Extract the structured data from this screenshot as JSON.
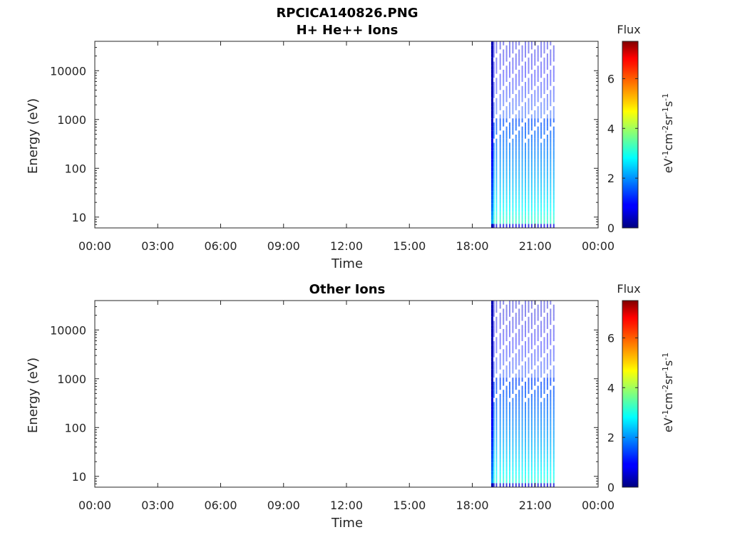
{
  "figure_title": "RPCICA140826.PNG",
  "chart_data": [
    {
      "type": "heatmap",
      "title": "H+ He++ Ions",
      "xlabel": "Time",
      "ylabel": "Energy (eV)",
      "yscale": "log",
      "ylim": [
        6,
        40000
      ],
      "xlim": [
        0,
        24
      ],
      "x_ticks": [
        0,
        3,
        6,
        9,
        12,
        15,
        18,
        21,
        24
      ],
      "x_tick_labels": [
        "00:00",
        "03:00",
        "06:00",
        "09:00",
        "12:00",
        "15:00",
        "18:00",
        "21:00",
        "00:00"
      ],
      "y_ticks": [
        10,
        100,
        1000,
        10000
      ],
      "y_tick_labels": [
        "10",
        "100",
        "1000",
        "10000"
      ],
      "colorbar": {
        "title": "Flux",
        "label": "eV-1cm-2sr-1s-1",
        "range": [
          0,
          7.5
        ],
        "ticks": [
          0,
          2,
          4,
          6
        ],
        "tick_labels": [
          "0",
          "2",
          "4",
          "6"
        ],
        "colormap": "jet"
      },
      "data_time_range": [
        18.9,
        21.85
      ],
      "strip_times": [
        18.9,
        19.0,
        19.12,
        19.3,
        19.45,
        19.6,
        19.75,
        19.9,
        20.05,
        20.2,
        20.35,
        20.5,
        20.65,
        20.8,
        20.95,
        21.1,
        21.25,
        21.4,
        21.55,
        21.7,
        21.85
      ],
      "flux_profile": [
        {
          "energy": 7,
          "flux": 3.3
        },
        {
          "energy": 15,
          "flux": 2.8
        },
        {
          "energy": 40,
          "flux": 2.4
        },
        {
          "energy": 100,
          "flux": 2.1
        },
        {
          "energy": 300,
          "flux": 1.8
        },
        {
          "energy": 1000,
          "flux": 1.5
        },
        {
          "energy": 3000,
          "flux": 1.2
        },
        {
          "energy": 10000,
          "flux": 0.9
        },
        {
          "energy": 40000,
          "flux": 0.7
        }
      ]
    },
    {
      "type": "heatmap",
      "title": "Other Ions",
      "xlabel": "Time",
      "ylabel": "Energy (eV)",
      "yscale": "log",
      "ylim": [
        6,
        40000
      ],
      "xlim": [
        0,
        24
      ],
      "x_ticks": [
        0,
        3,
        6,
        9,
        12,
        15,
        18,
        21,
        24
      ],
      "x_tick_labels": [
        "00:00",
        "03:00",
        "06:00",
        "09:00",
        "12:00",
        "15:00",
        "18:00",
        "21:00",
        "00:00"
      ],
      "y_ticks": [
        10,
        100,
        1000,
        10000
      ],
      "y_tick_labels": [
        "10",
        "100",
        "1000",
        "10000"
      ],
      "colorbar": {
        "title": "Flux",
        "label": "eV-1cm-2sr-1s-1",
        "range": [
          0,
          7.5
        ],
        "ticks": [
          0,
          2,
          4,
          6
        ],
        "tick_labels": [
          "0",
          "2",
          "4",
          "6"
        ],
        "colormap": "jet"
      },
      "data_time_range": [
        18.9,
        21.85
      ],
      "strip_times": [
        18.9,
        19.0,
        19.12,
        19.3,
        19.45,
        19.6,
        19.75,
        19.9,
        20.05,
        20.2,
        20.35,
        20.5,
        20.65,
        20.8,
        20.95,
        21.1,
        21.25,
        21.4,
        21.55,
        21.7,
        21.85
      ],
      "flux_profile": [
        {
          "energy": 7,
          "flux": 3.1
        },
        {
          "energy": 15,
          "flux": 2.7
        },
        {
          "energy": 40,
          "flux": 2.3
        },
        {
          "energy": 100,
          "flux": 2.0
        },
        {
          "energy": 300,
          "flux": 1.7
        },
        {
          "energy": 1000,
          "flux": 1.4
        },
        {
          "energy": 3000,
          "flux": 1.1
        },
        {
          "energy": 10000,
          "flux": 0.8
        },
        {
          "energy": 40000,
          "flux": 0.6
        }
      ]
    }
  ]
}
